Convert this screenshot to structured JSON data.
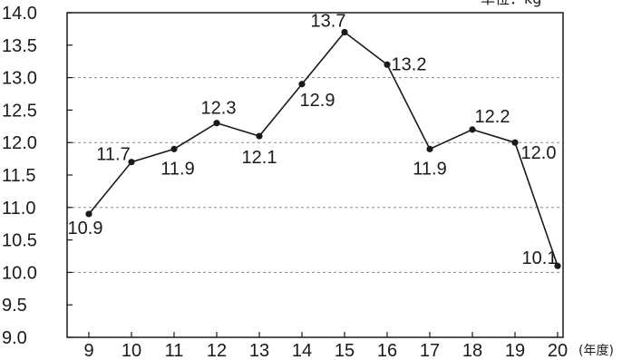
{
  "chart_data": {
    "type": "line",
    "categories": [
      "9",
      "10",
      "11",
      "12",
      "13",
      "14",
      "15",
      "16",
      "17",
      "18",
      "19",
      "20"
    ],
    "series": [
      {
        "values": [
          10.9,
          11.7,
          11.9,
          12.3,
          12.1,
          12.9,
          13.7,
          13.2,
          11.9,
          12.2,
          12.0,
          10.1
        ]
      }
    ],
    "data_labels": [
      "10.9",
      "11.7",
      "11.9",
      "12.3",
      "12.1",
      "12.9",
      "13.7",
      "13.2",
      "11.9",
      "12.2",
      "12.0",
      "10.1"
    ],
    "y_ticks": [
      "9.0",
      "9.5",
      "10.0",
      "10.5",
      "11.0",
      "11.5",
      "12.0",
      "12.5",
      "13.0",
      "13.5",
      "14.0"
    ],
    "ylim": [
      9.0,
      14.0
    ],
    "y_unit_label": "単位：kg",
    "x_unit_label": "(年度)",
    "grid": "dashed at 10.0, 11.0, 12.0, 13.0",
    "colors": {
      "line": "#1a1a1a",
      "marker": "#1a1a1a",
      "grid": "#888888",
      "frame": "#1a1a1a"
    }
  }
}
